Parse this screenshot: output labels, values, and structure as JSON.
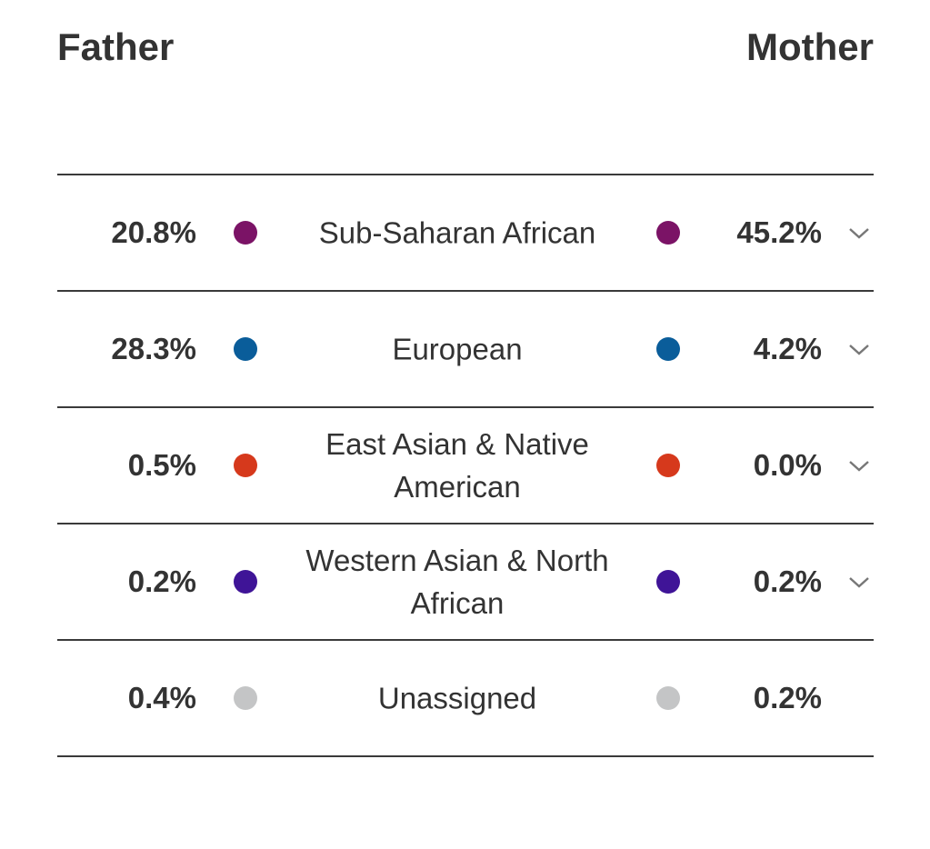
{
  "header": {
    "father": "Father",
    "mother": "Mother"
  },
  "rows": [
    {
      "label": "Sub-Saharan African",
      "father": "20.8%",
      "mother": "45.2%",
      "color": "#7b1366",
      "expandable": true
    },
    {
      "label": "European",
      "father": "28.3%",
      "mother": "4.2%",
      "color": "#0a5d9a",
      "expandable": true
    },
    {
      "label": "East Asian & Native American",
      "father": "0.5%",
      "mother": "0.0%",
      "color": "#d6391c",
      "expandable": true
    },
    {
      "label": "Western Asian & North African",
      "father": "0.2%",
      "mother": "0.2%",
      "color": "#3f1497",
      "expandable": true
    },
    {
      "label": "Unassigned",
      "father": "0.4%",
      "mother": "0.2%",
      "color": "#c4c5c6",
      "expandable": false
    }
  ]
}
